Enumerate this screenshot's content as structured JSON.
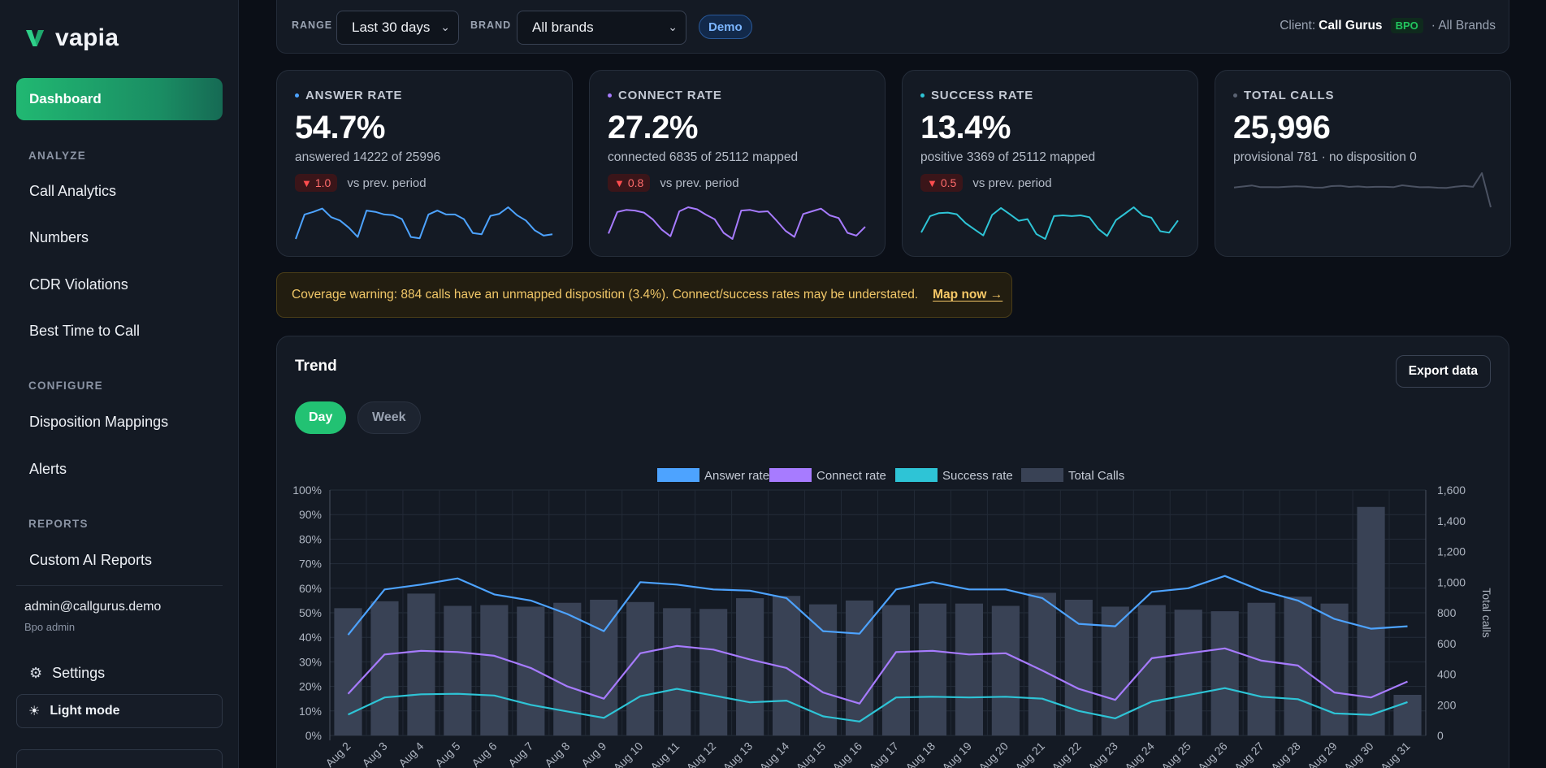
{
  "app": {
    "name": "vapia"
  },
  "sidebar": {
    "active": "Dashboard",
    "sections": [
      {
        "label": "ANALYZE",
        "items": [
          "Call Analytics",
          "Numbers",
          "CDR Violations",
          "Best Time to Call"
        ]
      },
      {
        "label": "CONFIGURE",
        "items": [
          "Disposition Mappings",
          "Alerts"
        ]
      },
      {
        "label": "REPORTS",
        "items": [
          "Custom AI Reports"
        ]
      }
    ],
    "user": {
      "email": "admin@callgurus.demo",
      "role": "Bpo admin"
    },
    "settings_label": "Settings",
    "theme_label": "Light mode"
  },
  "filters": {
    "range_label": "RANGE",
    "range_value": "Last 30 days",
    "brand_label": "BRAND",
    "brand_value": "All brands",
    "demo_badge": "Demo",
    "client_prefix": "Client:",
    "client_name": "Call Gurus",
    "client_tag": "BPO",
    "client_suffix": "· All Brands"
  },
  "kpis": [
    {
      "title": "ANSWER RATE",
      "value": "54.7%",
      "sub": "answered 14222 of 25996",
      "delta": "1.0",
      "delta_text": "vs prev. period",
      "color": "#4da3ff"
    },
    {
      "title": "CONNECT RATE",
      "value": "27.2%",
      "sub": "connected 6835 of 25112 mapped",
      "delta": "0.8",
      "delta_text": "vs prev. period",
      "color": "#a77bff"
    },
    {
      "title": "SUCCESS RATE",
      "value": "13.4%",
      "sub": "positive 3369 of 25112 mapped",
      "delta": "0.5",
      "delta_text": "vs prev. period",
      "color": "#2ec4d6"
    },
    {
      "title": "TOTAL CALLS",
      "value": "25,996",
      "sub": "provisional 781 · no disposition 0",
      "color": "#5b6373"
    }
  ],
  "warning": {
    "text": "Coverage warning: 884 calls have an unmapped disposition (3.4%). Connect/success rates may be understated.",
    "link": "Map now →"
  },
  "trend": {
    "title": "Trend",
    "export_label": "Export data",
    "granularity": [
      "Day",
      "Week"
    ],
    "active_granularity": "Day"
  },
  "chart_data": {
    "type": "bar",
    "categories": [
      "Aug 2",
      "Aug 3",
      "Aug 4",
      "Aug 5",
      "Aug 6",
      "Aug 7",
      "Aug 8",
      "Aug 9",
      "Aug 10",
      "Aug 11",
      "Aug 12",
      "Aug 13",
      "Aug 14",
      "Aug 15",
      "Aug 16",
      "Aug 17",
      "Aug 18",
      "Aug 19",
      "Aug 20",
      "Aug 21",
      "Aug 22",
      "Aug 23",
      "Aug 24",
      "Aug 25",
      "Aug 26",
      "Aug 27",
      "Aug 28",
      "Aug 29",
      "Aug 30",
      "Aug 31"
    ],
    "series": [
      {
        "name": "Total Calls",
        "type": "bar",
        "axis": "right",
        "color": "#394255",
        "values": [
          830,
          875,
          925,
          845,
          850,
          840,
          865,
          885,
          870,
          830,
          825,
          895,
          910,
          855,
          880,
          850,
          860,
          860,
          845,
          930,
          885,
          840,
          850,
          820,
          810,
          865,
          905,
          860,
          1490,
          265
        ]
      },
      {
        "name": "Answer rate",
        "type": "line",
        "axis": "left",
        "color": "#4da3ff",
        "values": [
          41,
          59.5,
          61.5,
          64,
          57.5,
          55,
          49.5,
          42.5,
          62.5,
          61.5,
          59.5,
          59,
          56,
          42.5,
          41.5,
          59.5,
          62.5,
          59.5,
          59.5,
          56,
          45.5,
          44.5,
          58.5,
          60,
          65,
          59,
          55,
          47.5,
          43.5,
          44.5
        ]
      },
      {
        "name": "Connect rate",
        "type": "line",
        "axis": "left",
        "color": "#a77bff",
        "values": [
          17,
          33,
          34.5,
          34,
          32.5,
          27.5,
          20,
          15,
          33.5,
          36.5,
          35,
          31,
          27.5,
          17.5,
          13,
          34,
          34.5,
          33,
          33.5,
          26.5,
          19,
          14.5,
          31.5,
          33.5,
          35.5,
          30.5,
          28.5,
          17.5,
          15.5,
          22
        ]
      },
      {
        "name": "Success rate",
        "type": "line",
        "axis": "left",
        "color": "#2ec4d6",
        "values": [
          8.5,
          15.5,
          16.8,
          17,
          16.3,
          12.5,
          9.8,
          7.2,
          16,
          19,
          16.3,
          13.5,
          14.2,
          7.8,
          5.7,
          15.5,
          15.8,
          15.5,
          15.8,
          15,
          10,
          7,
          13.8,
          16.5,
          19.3,
          15.8,
          14.8,
          9,
          8.4,
          13.6
        ]
      }
    ],
    "y_left": {
      "min": 0,
      "max": 100,
      "ticks": [
        "0%",
        "10%",
        "20%",
        "30%",
        "40%",
        "50%",
        "60%",
        "70%",
        "80%",
        "90%",
        "100%"
      ]
    },
    "y_right": {
      "min": 0,
      "max": 1600,
      "ticks": [
        "0",
        "200",
        "400",
        "600",
        "800",
        "1,000",
        "1,200",
        "1,400",
        "1,600"
      ],
      "label": "Total calls"
    },
    "legend": [
      "Answer rate",
      "Connect rate",
      "Success rate",
      "Total Calls"
    ],
    "grid": true,
    "legend_position": "top-center"
  },
  "sparklines": {
    "answer": [
      41,
      59.5,
      61.5,
      64,
      57.5,
      55,
      49.5,
      42.5,
      62.5,
      61.5,
      59.5,
      59,
      56,
      42.5,
      41.5,
      59.5,
      62.5,
      59.5,
      59.5,
      56,
      45.5,
      44.5,
      58.5,
      60,
      65,
      59,
      55,
      47.5,
      43.5,
      44.5
    ],
    "connect": [
      17,
      33,
      34.5,
      34,
      32.5,
      27.5,
      20,
      15,
      33.5,
      36.5,
      35,
      31,
      27.5,
      17.5,
      13,
      34,
      34.5,
      33,
      33.5,
      26.5,
      19,
      14.5,
      31.5,
      33.5,
      35.5,
      30.5,
      28.5,
      17.5,
      15.5,
      22
    ],
    "success": [
      8.5,
      15.5,
      16.8,
      17,
      16.3,
      12.5,
      9.8,
      7.2,
      16,
      19,
      16.3,
      13.5,
      14.2,
      7.8,
      5.7,
      15.5,
      15.8,
      15.5,
      15.8,
      15,
      10,
      7,
      13.8,
      16.5,
      19.3,
      15.8,
      14.8,
      9,
      8.4,
      13.6
    ],
    "total": [
      830,
      875,
      925,
      845,
      850,
      840,
      865,
      885,
      870,
      830,
      825,
      895,
      910,
      855,
      880,
      850,
      860,
      860,
      845,
      930,
      885,
      840,
      850,
      820,
      810,
      865,
      905,
      860,
      1490,
      265
    ]
  }
}
